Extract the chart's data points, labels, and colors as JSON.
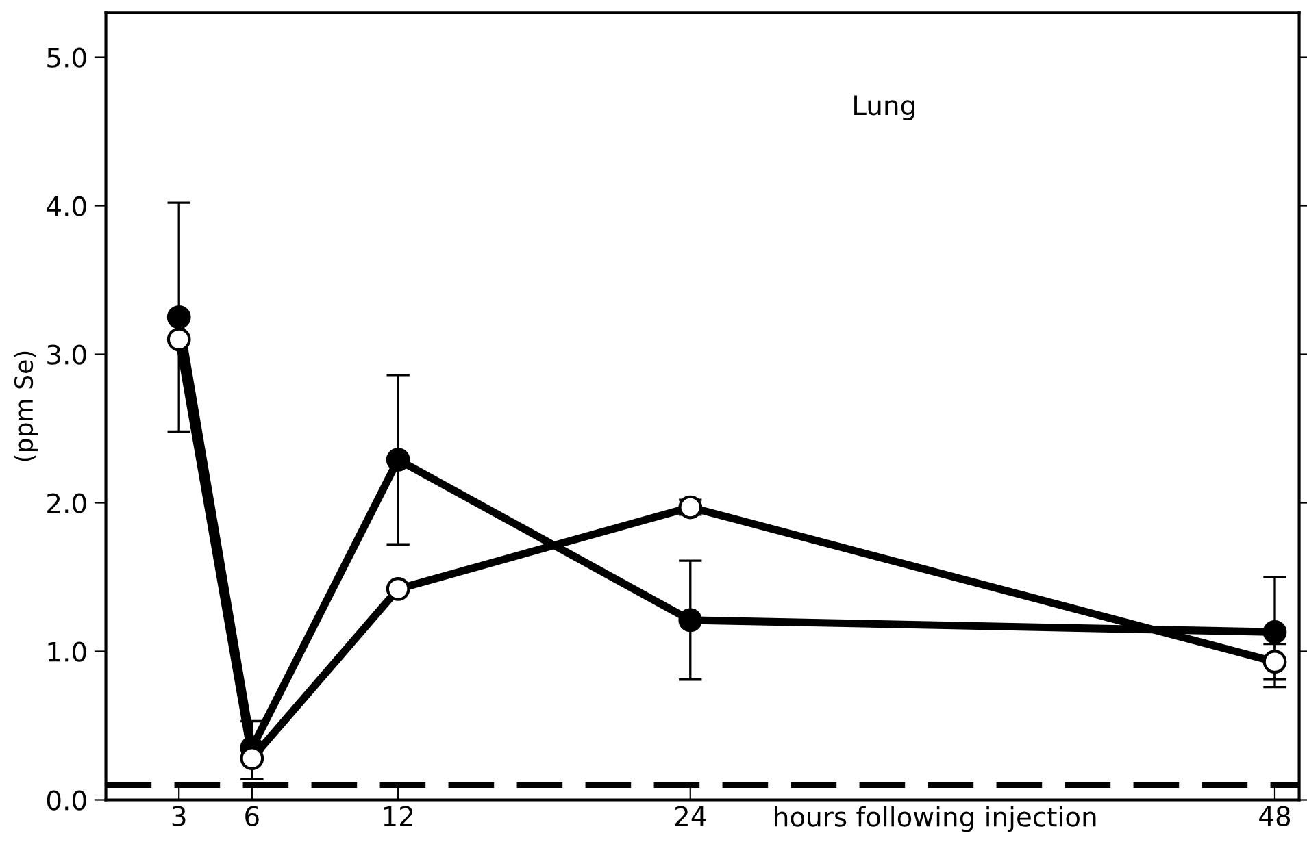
{
  "chart_data": {
    "type": "line",
    "xlabel": "hours following injection",
    "ylabel": "(ppm Se)",
    "annotations": [
      "Lung"
    ],
    "xlim": [
      0,
      49
    ],
    "xticks": [
      3,
      6,
      12,
      24,
      48
    ],
    "ylim": [
      0,
      5.3
    ],
    "yticks": [
      {
        "value": 0,
        "label": "0.0"
      },
      {
        "value": 1,
        "label": "1.0"
      },
      {
        "value": 2,
        "label": "2.0"
      },
      {
        "value": 3,
        "label": "3.0"
      },
      {
        "value": 4,
        "label": "4.0"
      },
      {
        "value": 5,
        "label": "5.0"
      }
    ],
    "x": [
      3,
      6,
      12,
      24,
      48
    ],
    "marker": "circle",
    "line_style": "solid",
    "grid": false,
    "legend": false,
    "series": [
      {
        "color": "#000000",
        "values": [
          3.25,
          0.35,
          2.29,
          1.21,
          1.13
        ],
        "errors": [
          0.77,
          null,
          0.57,
          0.4,
          0.37
        ]
      },
      {
        "color": "#000000",
        "colors": [
          "#ffffff",
          "#ffffff",
          "#ffffff",
          "#ffffff",
          "#ffffff"
        ],
        "values": [
          3.1,
          0.28,
          1.42,
          1.97,
          0.93
        ],
        "errors": [
          null,
          [
            0.14,
            0.53
          ],
          null,
          0.05,
          0.12
        ]
      }
    ],
    "ref_lines": [
      {
        "axis": "y",
        "value": 0.1,
        "color": "#000000",
        "line_style": "dashed"
      }
    ]
  }
}
